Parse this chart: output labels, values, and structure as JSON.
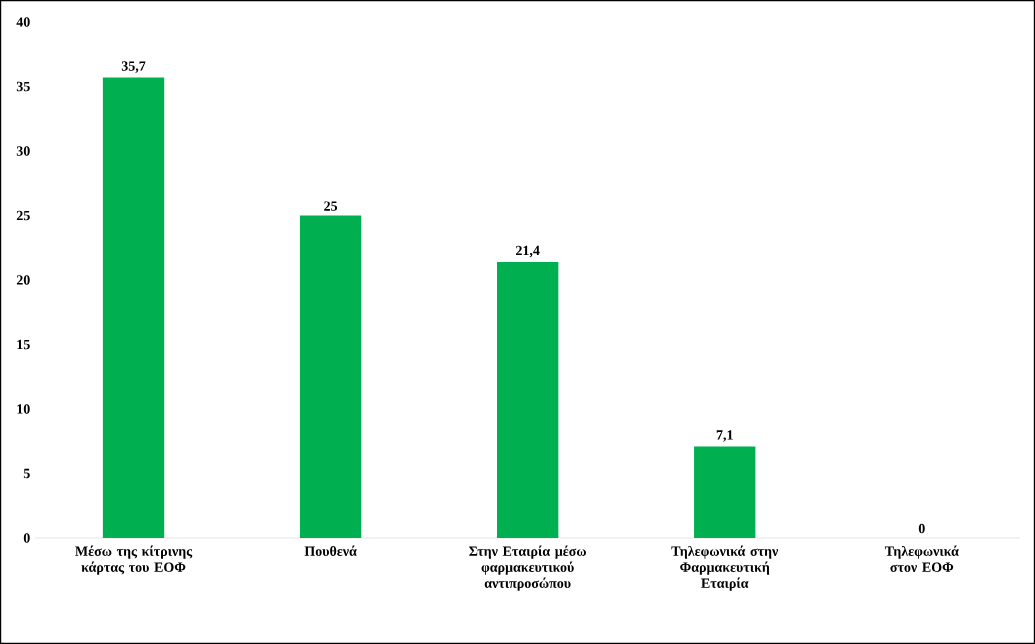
{
  "chart_data": {
    "type": "bar",
    "categories": [
      "Μέσω της κίτρινης κάρτας του ΕΟΦ",
      "Πουθενά",
      "Στην Εταιρία μέσω φαρμακευτικού αντιπροσώπου",
      "Τηλεφωνικά στην Φαρμακευτική Εταιρία",
      "Τηλεφωνικά στον ΕΟΦ"
    ],
    "values": [
      35.7,
      25,
      21.4,
      7.1,
      0
    ],
    "value_labels": [
      "35,7",
      "25",
      "21,4",
      "7,1",
      "0"
    ],
    "color": "#00b050",
    "ylim": [
      0,
      40
    ],
    "yticks": [
      0,
      5,
      10,
      15,
      20,
      25,
      30,
      35,
      40
    ],
    "grid": false
  }
}
